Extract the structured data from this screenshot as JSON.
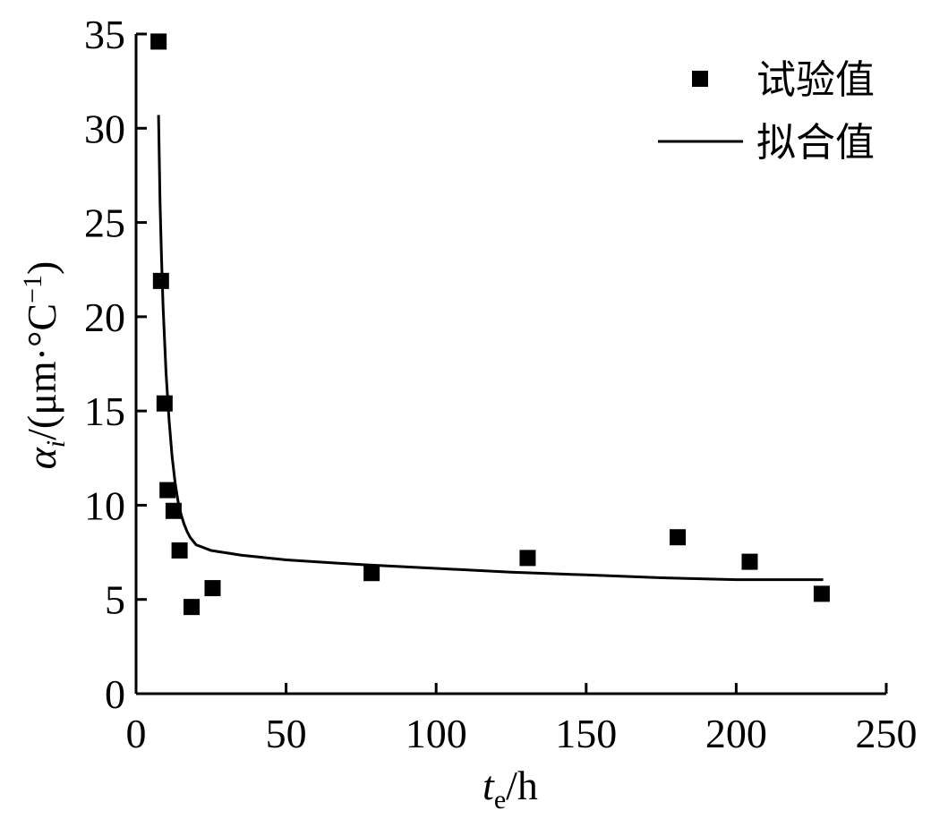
{
  "chart_data": {
    "type": "scatter",
    "title": "",
    "xlabel": {
      "var": "t",
      "sub": "e",
      "unit": "/h"
    },
    "ylabel": {
      "var": "α",
      "sub": "i",
      "unit": "/(μm·°C",
      "sup": "−1",
      "close": ")"
    },
    "xlim": [
      0,
      250
    ],
    "ylim": [
      0,
      35
    ],
    "xticks": [
      0,
      50,
      100,
      150,
      200,
      250
    ],
    "yticks": [
      0,
      5,
      10,
      15,
      20,
      25,
      30,
      35
    ],
    "grid": false,
    "legend_position": "top-right",
    "series": [
      {
        "name": "试验值",
        "kind": "scatter",
        "marker": "square",
        "color": "#000000",
        "points": [
          [
            7.5,
            34.6
          ],
          [
            8.3,
            21.9
          ],
          [
            9.5,
            15.4
          ],
          [
            10.5,
            10.8
          ],
          [
            12.5,
            9.7
          ],
          [
            14.5,
            7.6
          ],
          [
            18.5,
            4.6
          ],
          [
            25.5,
            5.6
          ],
          [
            78.5,
            6.4
          ],
          [
            130.5,
            7.2
          ],
          [
            180.5,
            8.3
          ],
          [
            204.5,
            7.0
          ],
          [
            228.5,
            5.3
          ]
        ]
      },
      {
        "name": "拟合值",
        "kind": "line",
        "color": "#000000",
        "points": [
          [
            7.5,
            30.7
          ],
          [
            8.0,
            26.0
          ],
          [
            8.5,
            23.0
          ],
          [
            9.0,
            20.5
          ],
          [
            10.0,
            17.0
          ],
          [
            11.0,
            14.5
          ],
          [
            12.0,
            12.6
          ],
          [
            13.0,
            11.2
          ],
          [
            14.0,
            10.2
          ],
          [
            15.0,
            9.5
          ],
          [
            16.0,
            9.0
          ],
          [
            17.0,
            8.6
          ],
          [
            18.0,
            8.3
          ],
          [
            20.0,
            7.9
          ],
          [
            25.0,
            7.6
          ],
          [
            35.0,
            7.35
          ],
          [
            50.0,
            7.1
          ],
          [
            75.0,
            6.85
          ],
          [
            100.0,
            6.65
          ],
          [
            125.0,
            6.45
          ],
          [
            150.0,
            6.3
          ],
          [
            175.0,
            6.15
          ],
          [
            200.0,
            6.05
          ],
          [
            229.0,
            6.05
          ]
        ]
      }
    ]
  }
}
